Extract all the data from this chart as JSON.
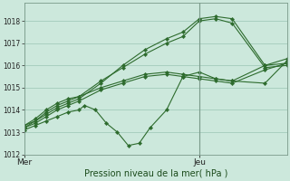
{
  "bg_color": "#cce8dc",
  "grid_color": "#a8cfc0",
  "line_color": "#2d6b2d",
  "marker_color": "#2d6b2d",
  "title": "Pression niveau de la mer( hPa )",
  "ylim": [
    1012,
    1018.8
  ],
  "yticks": [
    1012,
    1013,
    1014,
    1015,
    1016,
    1017,
    1018
  ],
  "xlim": [
    0,
    48
  ],
  "x_mer": 0,
  "x_jeu": 32,
  "xtick_positions": [
    0,
    32
  ],
  "xtick_labels": [
    "Mer",
    "Jeu"
  ],
  "vline_x": 32,
  "series": [
    [
      0,
      1013.3,
      2,
      1013.5,
      4,
      1013.8,
      6,
      1014.1,
      8,
      1014.3,
      10,
      1014.5,
      14,
      1015.2,
      18,
      1016.0,
      22,
      1016.7,
      26,
      1017.2,
      29,
      1017.5,
      32,
      1018.1,
      35,
      1018.2,
      38,
      1018.1,
      44,
      1016.0,
      48,
      1016.1
    ],
    [
      0,
      1013.3,
      2,
      1013.6,
      4,
      1014.0,
      6,
      1014.3,
      8,
      1014.5,
      10,
      1014.6,
      14,
      1015.3,
      18,
      1015.9,
      22,
      1016.5,
      26,
      1017.0,
      29,
      1017.3,
      32,
      1018.0,
      35,
      1018.1,
      38,
      1017.9,
      44,
      1015.9,
      48,
      1016.0
    ],
    [
      0,
      1013.2,
      2,
      1013.4,
      4,
      1013.7,
      6,
      1014.0,
      8,
      1014.2,
      10,
      1014.4,
      14,
      1014.9,
      18,
      1015.2,
      22,
      1015.5,
      26,
      1015.6,
      29,
      1015.5,
      32,
      1015.4,
      35,
      1015.3,
      38,
      1015.2,
      44,
      1015.8,
      48,
      1016.1
    ],
    [
      0,
      1013.1,
      2,
      1013.3,
      4,
      1013.5,
      6,
      1013.7,
      8,
      1013.9,
      10,
      1014.0,
      11,
      1014.2,
      13,
      1014.0,
      15,
      1013.4,
      17,
      1013.0,
      19,
      1012.4,
      21,
      1012.5,
      23,
      1013.2,
      26,
      1014.0,
      29,
      1015.5,
      32,
      1015.7,
      35,
      1015.4,
      38,
      1015.3,
      44,
      1015.2,
      48,
      1016.2
    ],
    [
      0,
      1013.2,
      2,
      1013.5,
      4,
      1013.9,
      6,
      1014.2,
      8,
      1014.4,
      10,
      1014.6,
      14,
      1015.0,
      18,
      1015.3,
      22,
      1015.6,
      26,
      1015.7,
      29,
      1015.6,
      32,
      1015.5,
      35,
      1015.4,
      38,
      1015.3,
      44,
      1016.0,
      48,
      1016.3
    ]
  ]
}
